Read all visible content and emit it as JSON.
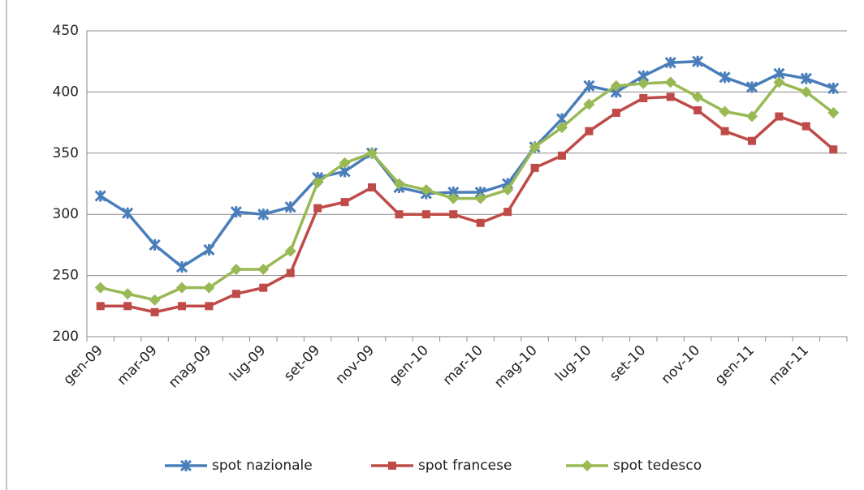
{
  "chart_data": {
    "type": "line",
    "categories": [
      "gen-09",
      null,
      "mar-09",
      null,
      "mag-09",
      null,
      "lug-09",
      null,
      "set-09",
      null,
      "nov-09",
      null,
      "gen-10",
      null,
      "mar-10",
      null,
      "mag-10",
      null,
      "lug-10",
      null,
      "set-10",
      null,
      "nov-10",
      null,
      "gen-11",
      null,
      "mar-11",
      null
    ],
    "series": [
      {
        "name": "spot nazionale",
        "color": "#4a7ebb",
        "marker": "x",
        "values": [
          315,
          301,
          275,
          257,
          271,
          302,
          300,
          306,
          330,
          335,
          350,
          322,
          317,
          318,
          318,
          325,
          355,
          378,
          405,
          400,
          413,
          424,
          425,
          412,
          404,
          415,
          411,
          403
        ]
      },
      {
        "name": "spot francese",
        "color": "#be4b48",
        "marker": "square",
        "values": [
          225,
          225,
          220,
          225,
          225,
          235,
          240,
          252,
          305,
          310,
          322,
          300,
          300,
          300,
          293,
          302,
          338,
          348,
          368,
          383,
          395,
          396,
          385,
          368,
          360,
          380,
          372,
          353
        ]
      },
      {
        "name": "spot tedesco",
        "color": "#98b954",
        "marker": "diamond",
        "values": [
          240,
          235,
          230,
          240,
          240,
          255,
          255,
          270,
          326,
          342,
          350,
          325,
          320,
          313,
          313,
          320,
          355,
          371,
          390,
          405,
          407,
          408,
          396,
          384,
          380,
          408,
          400,
          383
        ]
      }
    ],
    "ylim": [
      200,
      450
    ],
    "yticks": [
      200,
      250,
      300,
      350,
      400,
      450
    ],
    "grid": true,
    "legend": "bottom"
  }
}
